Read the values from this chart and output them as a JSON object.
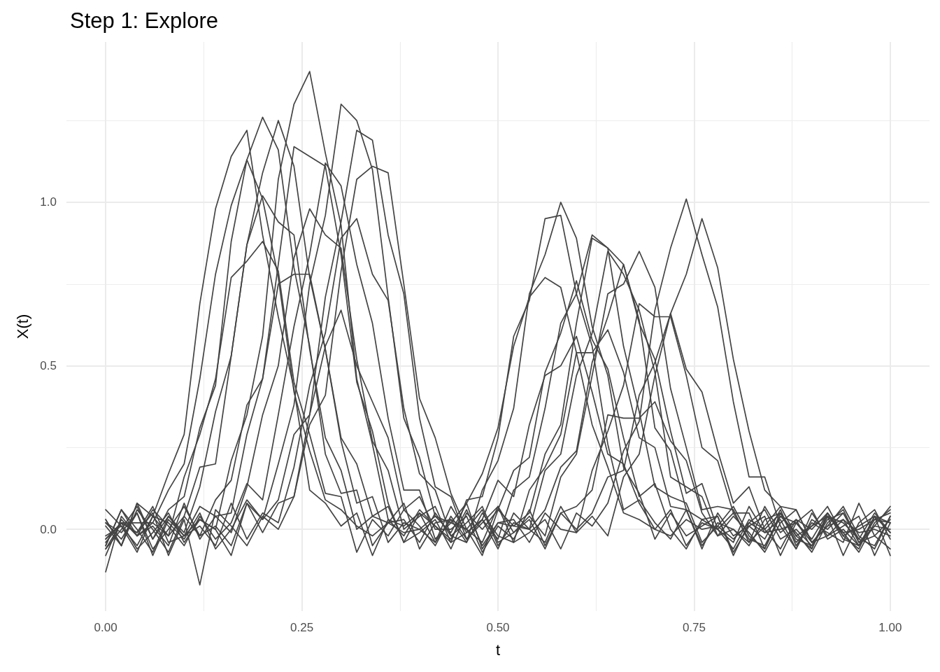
{
  "chart_data": {
    "type": "line",
    "title": "Step 1: Explore",
    "xlabel": "t",
    "ylabel": "X(t)",
    "color": "#444444",
    "grid": true,
    "xlim": [
      -0.05,
      1.05
    ],
    "ylim": [
      -0.25,
      1.49
    ],
    "xticks": [
      {
        "value": 0,
        "label": "0.00"
      },
      {
        "value": 0.125,
        "label": null
      },
      {
        "value": 0.25,
        "label": "0.25"
      },
      {
        "value": 0.375,
        "label": null
      },
      {
        "value": 0.5,
        "label": "0.50"
      },
      {
        "value": 0.625,
        "label": null
      },
      {
        "value": 0.75,
        "label": "0.75"
      },
      {
        "value": 0.875,
        "label": null
      },
      {
        "value": 1,
        "label": "1.00"
      }
    ],
    "yticks": [
      {
        "value": 0,
        "label": "0.0"
      },
      {
        "value": 0.25,
        "label": null
      },
      {
        "value": 0.5,
        "label": "0.5"
      },
      {
        "value": 0.75,
        "label": null
      },
      {
        "value": 1,
        "label": "1.0"
      },
      {
        "value": 1.25,
        "label": null
      }
    ],
    "x": [
      0,
      0.02,
      0.04,
      0.06,
      0.08,
      0.1,
      0.12,
      0.14,
      0.16,
      0.18,
      0.2,
      0.22,
      0.24,
      0.26,
      0.28,
      0.3,
      0.32,
      0.34,
      0.36,
      0.38,
      0.4,
      0.42,
      0.44,
      0.46,
      0.48,
      0.5,
      0.52,
      0.54,
      0.56,
      0.58,
      0.6,
      0.62,
      0.64,
      0.66,
      0.68,
      0.7,
      0.72,
      0.74,
      0.76,
      0.78,
      0.8,
      0.82,
      0.84,
      0.86,
      0.88,
      0.9,
      0.92,
      0.94,
      0.96,
      0.98,
      1
    ],
    "series": [
      {
        "values": [
          0.03,
          -0.05,
          0.08,
          0.04,
          0.17,
          0.29,
          0.69,
          0.98,
          1.14,
          1.22,
          0.9,
          0.65,
          0.43,
          0.12,
          0.08,
          0.01,
          0.05,
          -0.08,
          0.03,
          -0.02,
          0.06,
          0.01,
          -0.04,
          0.09,
          0.1,
          0.28,
          0.59,
          0.7,
          0.95,
          0.96,
          0.72,
          0.56,
          0.26,
          0.06,
          0.09,
          0.02,
          -0.03,
          0.06,
          -0.05,
          0.02,
          0.0,
          -0.04,
          0.07,
          -0.01,
          0.03,
          -0.06,
          0.05,
          -0.02,
          0.01,
          0.04,
          -0.08
        ]
      },
      {
        "values": [
          -0.03,
          0.02,
          0.02,
          0.02,
          0.12,
          0.2,
          0.46,
          0.78,
          0.99,
          1.13,
          1.01,
          0.77,
          0.42,
          0.24,
          0.09,
          0.06,
          0.01,
          -0.02,
          0.02,
          -0.01,
          0.0,
          0.04,
          -0.01,
          0.08,
          0.17,
          0.31,
          0.56,
          0.71,
          0.77,
          0.74,
          0.54,
          0.32,
          0.19,
          0.05,
          0.03,
          0.0,
          -0.02,
          0.03,
          0.0,
          0.01,
          -0.03,
          0.02,
          -0.01,
          0.0,
          0.02,
          -0.04,
          0.01,
          0.03,
          -0.01,
          0.0,
          -0.02
        ]
      },
      {
        "values": [
          -0.06,
          0.0,
          0.07,
          -0.03,
          0.06,
          0.1,
          0.31,
          0.44,
          0.88,
          1.13,
          1.26,
          1.16,
          0.8,
          0.56,
          0.23,
          0.11,
          0.12,
          -0.05,
          0.02,
          0.03,
          -0.04,
          0.05,
          -0.02,
          -0.04,
          0.12,
          0.21,
          0.37,
          0.72,
          0.84,
          1.0,
          0.89,
          0.62,
          0.47,
          0.19,
          0.11,
          -0.03,
          0.05,
          -0.02,
          0.01,
          0.04,
          -0.08,
          0.02,
          0.06,
          -0.03,
          0.0,
          -0.05,
          0.03,
          0.05,
          -0.04,
          0.01,
          0.07
        ]
      },
      {
        "values": [
          0.01,
          -0.05,
          0.08,
          -0.03,
          0.04,
          -0.01,
          0.13,
          0.36,
          0.53,
          0.87,
          1.02,
          0.94,
          0.9,
          0.55,
          0.28,
          0.18,
          0.0,
          0.04,
          0.07,
          -0.04,
          -0.01,
          0.03,
          -0.06,
          0.05,
          0.0,
          0.06,
          0.18,
          0.22,
          0.48,
          0.6,
          0.76,
          0.58,
          0.49,
          0.28,
          0.1,
          0.14,
          0.0,
          -0.06,
          0.03,
          0.0,
          0.05,
          -0.03,
          -0.05,
          0.04,
          -0.01,
          -0.07,
          0.02,
          0.06,
          -0.04,
          -0.02,
          0.03
        ]
      },
      {
        "values": [
          0.06,
          0.01,
          -0.05,
          0.04,
          -0.02,
          0.04,
          0.19,
          0.2,
          0.53,
          0.87,
          1.09,
          1.25,
          1.11,
          0.77,
          0.55,
          0.27,
          0.08,
          0.1,
          -0.04,
          0.02,
          0.0,
          -0.04,
          0.07,
          -0.01,
          0.03,
          -0.03,
          0.12,
          0.16,
          0.37,
          0.63,
          0.72,
          0.9,
          0.86,
          0.56,
          0.36,
          0.13,
          0.1,
          0.08,
          -0.04,
          0.01,
          0.07,
          -0.02,
          -0.06,
          0.04,
          0.02,
          -0.03,
          0.05,
          -0.01,
          0.0,
          0.03,
          0.02
        ]
      },
      {
        "values": [
          -0.06,
          0.02,
          -0.01,
          0.07,
          -0.04,
          -0.02,
          0.03,
          0.0,
          0.21,
          0.35,
          0.59,
          1.07,
          1.3,
          1.4,
          1.15,
          0.93,
          0.46,
          0.26,
          0.03,
          0.01,
          0.05,
          -0.04,
          0.03,
          0.0,
          -0.08,
          0.06,
          0.01,
          0.05,
          0.23,
          0.32,
          0.63,
          0.89,
          0.86,
          0.81,
          0.64,
          0.31,
          0.24,
          0.06,
          0.03,
          0.04,
          -0.07,
          0.01,
          -0.03,
          0.06,
          -0.05,
          0.02,
          -0.01,
          -0.04,
          0.08,
          -0.02,
          -0.06
        ]
      },
      {
        "values": [
          0.02,
          -0.03,
          0.05,
          -0.06,
          0.0,
          0.07,
          -0.02,
          0.09,
          0.15,
          0.38,
          0.46,
          0.75,
          0.78,
          0.78,
          0.55,
          0.28,
          0.2,
          0.04,
          0.02,
          0.08,
          -0.06,
          0.02,
          0.03,
          -0.04,
          0.05,
          -0.02,
          -0.04,
          0.12,
          0.19,
          0.29,
          0.54,
          0.54,
          0.61,
          0.48,
          0.28,
          0.25,
          0.07,
          0.06,
          -0.06,
          0.05,
          -0.02,
          0.01,
          0.04,
          -0.08,
          0.02,
          0.06,
          -0.03,
          0.0,
          -0.05,
          0.03,
          0.05
        ]
      },
      {
        "values": [
          -0.13,
          0.04,
          -0.02,
          0.01,
          -0.05,
          0.08,
          -0.03,
          0.04,
          -0.01,
          0.13,
          0.35,
          0.5,
          0.83,
          0.98,
          0.9,
          0.86,
          0.52,
          0.27,
          0.18,
          0.0,
          0.04,
          0.07,
          -0.04,
          -0.01,
          0.03,
          -0.06,
          0.05,
          0.0,
          0.06,
          0.19,
          0.24,
          0.51,
          0.65,
          0.81,
          0.63,
          0.52,
          0.3,
          0.11,
          0.14,
          0.0,
          -0.06,
          0.03,
          0.0,
          0.05,
          -0.03,
          -0.05,
          0.04,
          -0.01,
          -0.07,
          0.02,
          0.06
        ]
      },
      {
        "values": [
          -0.08,
          0.03,
          -0.02,
          0.06,
          0.01,
          -0.05,
          0.04,
          -0.03,
          0.02,
          0.14,
          0.09,
          0.35,
          0.62,
          0.84,
          1.12,
          1.05,
          0.81,
          0.63,
          0.34,
          0.12,
          0.12,
          -0.03,
          0.02,
          0.0,
          -0.04,
          0.07,
          -0.01,
          0.04,
          -0.02,
          0.16,
          0.23,
          0.47,
          0.72,
          0.75,
          0.85,
          0.74,
          0.43,
          0.25,
          0.06,
          0.07,
          0.06,
          -0.04,
          0.01,
          0.07,
          -0.02,
          -0.06,
          0.04,
          0.02,
          -0.03,
          0.05,
          -0.01
        ]
      },
      {
        "values": [
          -0.02,
          0.01,
          -0.07,
          0.04,
          0.02,
          -0.03,
          0.05,
          -0.06,
          0.0,
          0.09,
          0.03,
          0.2,
          0.38,
          0.75,
          0.96,
          1.3,
          1.25,
          1.1,
          0.71,
          0.34,
          0.22,
          0.04,
          0.02,
          0.08,
          -0.06,
          0.02,
          0.03,
          -0.04,
          0.05,
          0.0,
          -0.01,
          0.18,
          0.3,
          0.44,
          0.69,
          0.65,
          0.65,
          0.47,
          0.25,
          0.21,
          0.05,
          0.05,
          -0.06,
          0.05,
          -0.02,
          0.01,
          0.04,
          -0.08,
          0.02,
          0.06,
          -0.03
        ]
      },
      {
        "values": [
          0.03,
          -0.05,
          0.06,
          0.0,
          -0.07,
          0.04,
          -0.02,
          0.01,
          -0.05,
          0.08,
          -0.01,
          0.08,
          0.1,
          0.35,
          0.71,
          0.94,
          1.22,
          1.19,
          0.9,
          0.72,
          0.34,
          0.13,
          0.1,
          -0.03,
          0.02,
          0.07,
          -0.04,
          -0.01,
          0.03,
          -0.06,
          0.05,
          0.01,
          0.08,
          0.24,
          0.33,
          0.67,
          0.86,
          1.01,
          0.84,
          0.68,
          0.39,
          0.16,
          0.16,
          0.01,
          -0.06,
          0.03,
          0.0,
          0.05,
          -0.03,
          -0.05,
          0.04
        ]
      },
      {
        "values": [
          -0.04,
          0.02,
          -0.01,
          0.05,
          -0.08,
          0.03,
          -0.17,
          0.06,
          0.01,
          -0.05,
          0.04,
          0.0,
          0.1,
          0.32,
          0.41,
          0.79,
          1.07,
          1.11,
          1.09,
          0.75,
          0.4,
          0.28,
          0.11,
          0.0,
          0.06,
          -0.05,
          0.02,
          0.0,
          -0.04,
          0.07,
          -0.01,
          0.04,
          -0.02,
          0.16,
          0.23,
          0.47,
          0.66,
          0.78,
          0.95,
          0.8,
          0.52,
          0.3,
          0.12,
          0.07,
          0.06,
          -0.04,
          0.01,
          0.07,
          -0.02,
          -0.06,
          0.04
        ]
      },
      {
        "values": [
          -0.03,
          0.02,
          -0.06,
          -0.01,
          0.05,
          -0.04,
          0.03,
          0.0,
          -0.08,
          0.08,
          0.03,
          0.09,
          0.29,
          0.35,
          0.56,
          0.67,
          0.5,
          0.39,
          0.28,
          0.06,
          0.1,
          0.0,
          0.0,
          0.04,
          -0.07,
          0.01,
          -0.03,
          0.06,
          -0.05,
          0.05,
          0.07,
          0.12,
          0.35,
          0.34,
          0.34,
          0.39,
          0.27,
          0.21,
          0.05,
          -0.02,
          0.04,
          -0.01,
          -0.07,
          0.02,
          0.06,
          -0.04,
          -0.02,
          0.03,
          -0.05,
          0.01,
          0.0
        ]
      },
      {
        "values": [
          -0.05,
          0.06,
          -0.02,
          0.02,
          -0.02,
          0.16,
          0.29,
          0.46,
          0.77,
          0.82,
          0.88,
          0.79,
          0.45,
          0.29,
          0.11,
          0.1,
          -0.07,
          0.03,
          -0.02,
          0.06,
          0.01,
          -0.05,
          0.04,
          -0.03,
          0.03,
          0.15,
          0.1,
          0.32,
          0.47,
          0.5,
          0.59,
          0.42,
          0.23,
          0.2,
          0.08,
          0.0,
          0.06,
          -0.05,
          0.02,
          0.0,
          -0.04,
          0.07,
          -0.01,
          0.03,
          -0.06,
          0.05,
          -0.02,
          0.01,
          0.04,
          -0.08,
          0.02
        ]
      },
      {
        "values": [
          -0.05,
          0.06,
          0.0,
          -0.07,
          0.04,
          -0.02,
          0.01,
          -0.05,
          0.08,
          -0.03,
          0.05,
          0.02,
          0.19,
          0.44,
          0.6,
          0.89,
          0.95,
          0.78,
          0.7,
          0.37,
          0.17,
          0.12,
          -0.02,
          0.02,
          0.07,
          -0.04,
          -0.01,
          0.03,
          -0.06,
          0.05,
          0.0,
          0.05,
          0.16,
          0.18,
          0.41,
          0.51,
          0.66,
          0.49,
          0.42,
          0.24,
          0.08,
          0.13,
          0.0,
          -0.06,
          0.03,
          0.0,
          0.05,
          -0.03,
          -0.05,
          0.04,
          -0.01
        ]
      },
      {
        "values": [
          0.02,
          -0.01,
          0.05,
          -0.08,
          0.03,
          -0.02,
          0.07,
          0.04,
          0.05,
          0.29,
          0.46,
          0.81,
          1.17,
          1.14,
          1.11,
          0.84,
          0.45,
          0.3,
          0.08,
          -0.04,
          0.05,
          0.01,
          -0.03,
          0.06,
          -0.05,
          0.02,
          0.01,
          0.0,
          0.18,
          0.23,
          0.47,
          0.6,
          0.85,
          0.78,
          0.67,
          0.48,
          0.16,
          0.13,
          0.1,
          -0.02,
          0.0,
          -0.05,
          0.03,
          0.05,
          -0.04,
          0.01,
          0.07,
          -0.02,
          -0.06,
          0.04,
          0.02
        ]
      }
    ]
  }
}
